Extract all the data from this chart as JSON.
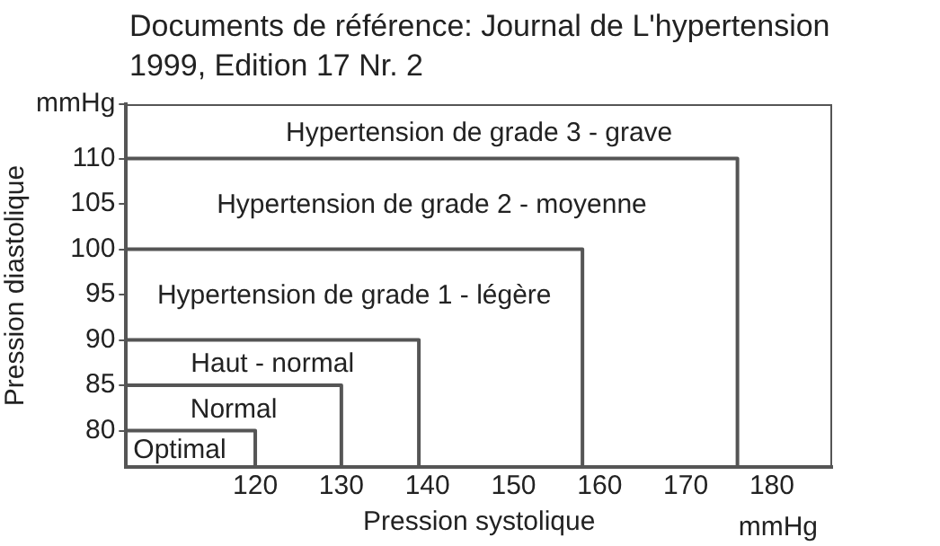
{
  "chart_data": {
    "type": "line",
    "title": "Documents de référence: Journal de L'hypertension 1999, Edition 17 Nr. 2",
    "xlabel": "Pression systolique",
    "ylabel": "Pression diastolique",
    "annotations": [
      "mmHg"
    ],
    "xlim": [
      105,
      187
    ],
    "xticks": [
      120,
      130,
      140,
      150,
      160,
      170,
      180
    ],
    "ylim": [
      76,
      116
    ],
    "yticks": [
      80,
      85,
      90,
      95,
      100,
      105,
      110,
      {
        "value": 116,
        "label": "mmHg"
      }
    ],
    "grid": false,
    "legend": false,
    "marker": "none",
    "line_style": "solid",
    "series": [
      {
        "name": "Optimal",
        "color": "#555555",
        "x": [
          105,
          120,
          120
        ],
        "values": [
          80,
          80,
          76
        ]
      },
      {
        "name": "Normal",
        "color": "#555555",
        "x": [
          105,
          130,
          130
        ],
        "values": [
          85,
          85,
          76
        ]
      },
      {
        "name": "Haut - normal",
        "color": "#555555",
        "x": [
          105,
          139,
          139
        ],
        "values": [
          90,
          90,
          76
        ]
      },
      {
        "name": "Hypertension de grade 1 - légère",
        "color": "#555555",
        "x": [
          105,
          158,
          158
        ],
        "values": [
          100,
          100,
          76
        ]
      },
      {
        "name": "Hypertension de grade 2 - moyenne",
        "color": "#555555",
        "x": [
          105,
          176,
          176
        ],
        "values": [
          110,
          110,
          76
        ]
      },
      {
        "name": "Hypertension de grade 3 - grave",
        "color": "#555555",
        "x": [
          105,
          187,
          187
        ],
        "values": [
          116,
          116,
          76
        ]
      }
    ]
  }
}
